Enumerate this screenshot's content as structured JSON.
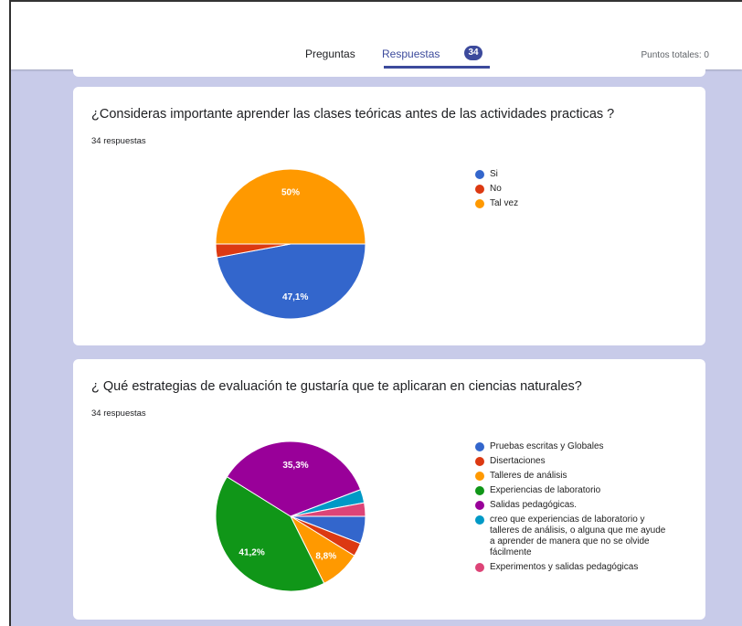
{
  "header": {
    "tabs": [
      "Preguntas",
      "Respuestas"
    ],
    "badge": "34",
    "points": "Puntos totales: 0"
  },
  "chart_data": [
    {
      "type": "pie",
      "title": "¿Consideras importante aprender las clases teóricas antes de las actividades practicas ?",
      "subtitle": "34 respuestas",
      "categories": [
        "Si",
        "No",
        "Tal vez"
      ],
      "values": [
        47.1,
        2.9,
        50
      ],
      "value_labels": [
        "47,1%",
        null,
        "50%"
      ],
      "colors": [
        "#3366cc",
        "#dc3912",
        "#ff9900"
      ]
    },
    {
      "type": "pie",
      "title": "¿ Qué estrategias de evaluación te gustaría que te aplicaran en ciencias naturales?",
      "subtitle": "34 respuestas",
      "categories": [
        "Pruebas escritas y Globales",
        "Disertaciones",
        "Talleres de análisis",
        "Experiencias de laboratorio",
        "Salidas pedagógicas.",
        "creo que experiencias de laboratorio y talleres de análisis, o alguna que me ayude a aprender de manera que no se olvide fácilmente",
        "Experimentos y salidas pedagógicas"
      ],
      "values": [
        5.9,
        2.9,
        8.8,
        41.2,
        35.3,
        2.9,
        2.9
      ],
      "value_labels": [
        null,
        null,
        "8,8%",
        "41,2%",
        "35,3%",
        null,
        null
      ],
      "colors": [
        "#3366cc",
        "#dc3912",
        "#ff9900",
        "#109618",
        "#990099",
        "#0099c6",
        "#dd4477"
      ]
    }
  ]
}
